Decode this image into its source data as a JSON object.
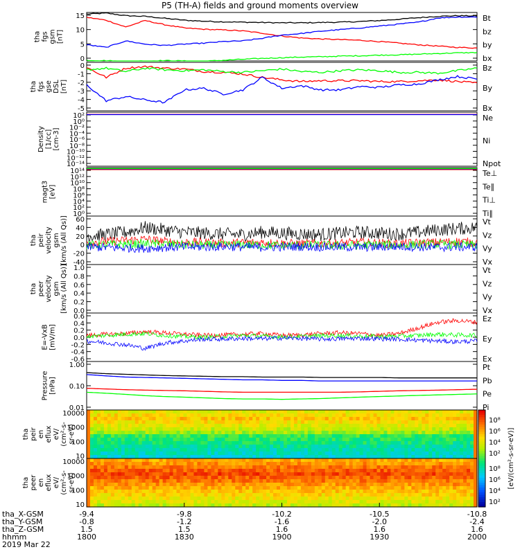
{
  "title": "P5 (TH-A) fields and ground moments overview",
  "chart_data": [
    {
      "type": "line",
      "ylabel_lines": [
        "tha",
        "fgs",
        "gsm",
        "[nT]"
      ],
      "yticks": [
        "15",
        "10",
        "5",
        "0"
      ],
      "ylim": [
        0,
        15
      ],
      "series": [
        {
          "name": "Bt",
          "color": "#000000",
          "values": [
            14.5,
            14.8,
            14.0,
            13.8,
            13.2,
            12.6,
            12.3,
            12.1,
            12.0,
            11.9,
            11.8,
            11.8,
            11.9,
            12.0,
            12.2,
            12.5,
            12.9,
            13.4,
            13.8,
            14.0,
            13.9
          ]
        },
        {
          "name": "bz",
          "color": "#ff0000",
          "values": [
            13.5,
            12.6,
            10.5,
            12.5,
            11.2,
            10.2,
            9.8,
            9.6,
            9.3,
            8.6,
            7.7,
            7.1,
            6.8,
            6.6,
            6.4,
            6.0,
            5.5,
            5.0,
            4.6,
            4.2,
            4.0
          ]
        },
        {
          "name": "by",
          "color": "#00ff00",
          "values": [
            0.2,
            0.1,
            -0.2,
            0.0,
            0.1,
            0.0,
            -0.1,
            0.2,
            0.5,
            0.8,
            1.0,
            1.2,
            1.3,
            1.5,
            1.6,
            1.8,
            1.9,
            2.1,
            2.3,
            2.5,
            2.6
          ]
        },
        {
          "name": "bx",
          "color": "#0000ff",
          "values": [
            5.0,
            4.2,
            6.2,
            5.2,
            4.8,
            5.2,
            5.5,
            6.0,
            6.2,
            7.0,
            8.0,
            8.5,
            9.2,
            9.7,
            10.2,
            10.8,
            11.4,
            12.0,
            13.3,
            13.6,
            13.6
          ]
        }
      ]
    },
    {
      "type": "line",
      "ylabel_lines": [
        "tha",
        "fgs",
        "gse",
        "DSL",
        "[nT]"
      ],
      "yticks": [
        "0",
        "-1",
        "-2",
        "-3",
        "-4",
        "-5"
      ],
      "ylim": [
        -5.5,
        0.3
      ],
      "series": [
        {
          "name": "Bz",
          "color": "#ff0000",
          "values": [
            -0.3,
            -1.5,
            -0.4,
            -0.2,
            -0.4,
            -0.5,
            -0.8,
            -0.9,
            -1.1,
            -1.5,
            -1.8,
            -2.0,
            -1.9,
            -1.9,
            -1.9,
            -2.0,
            -2.0,
            -1.9,
            -1.8,
            -2.0,
            -2.2
          ]
        },
        {
          "name": "By",
          "color": "#00ff00",
          "values": [
            -0.6,
            -0.4,
            -0.8,
            -0.4,
            -0.6,
            -0.7,
            -0.6,
            -0.8,
            -0.9,
            -0.7,
            -0.5,
            -0.8,
            -0.9,
            -0.7,
            -0.6,
            -0.7,
            -0.9,
            -0.9,
            -1.0,
            -0.7,
            -0.4
          ]
        },
        {
          "name": "Bx",
          "color": "#0000ff",
          "values": [
            -2.4,
            -4.3,
            -3.8,
            -4.2,
            -4.5,
            -3.0,
            -2.8,
            -3.5,
            -3.0,
            -1.5,
            -2.8,
            -2.5,
            -3.0,
            -3.0,
            -2.6,
            -2.7,
            -2.4,
            -2.3,
            -1.8,
            -1.4,
            -1.7
          ]
        }
      ]
    },
    {
      "type": "line",
      "ylabel_lines": [
        "Density",
        "[1/cc]",
        "[cm-3]"
      ],
      "yticks": [
        "10²",
        "10⁰",
        "10⁻²",
        "10⁻⁴",
        "10⁻⁶",
        "10⁻⁸",
        "10⁻¹⁰",
        "10⁻¹²",
        "10⁻¹⁴"
      ],
      "ylim": [
        0,
        1
      ],
      "series": [
        {
          "name": "Ne",
          "color": "#ff0000",
          "values": [
            0.96,
            0.96,
            0.96,
            0.96,
            0.96,
            0.96,
            0.96,
            0.96,
            0.96,
            0.96,
            0.96,
            0.96,
            0.96,
            0.96,
            0.96,
            0.96,
            0.96,
            0.96,
            0.96,
            0.96,
            0.96
          ]
        },
        {
          "name": "Ni",
          "color": "#000000",
          "values": []
        },
        {
          "name": "Npot",
          "color": "#0000ff",
          "values": [
            0.955,
            0.955,
            0.955,
            0.955,
            0.955,
            0.955,
            0.955,
            0.955,
            0.955,
            0.955,
            0.955,
            0.955,
            0.955,
            0.955,
            0.955,
            0.955,
            0.955,
            0.955,
            0.955,
            0.955,
            0.955
          ]
        }
      ]
    },
    {
      "type": "line",
      "ylabel_lines": [
        "magt3",
        "[eV]"
      ],
      "yticks": [
        "10¹⁴",
        "10¹²",
        "10¹⁰",
        "10⁸",
        "10⁶",
        "10⁴",
        "10²",
        "10⁰"
      ],
      "ylim": [
        0,
        1
      ],
      "series": [
        {
          "name": "Te⊥",
          "color": "#ff0000",
          "values": [
            0.96,
            0.96,
            0.96,
            0.96,
            0.96,
            0.96,
            0.96,
            0.96,
            0.96,
            0.96,
            0.96,
            0.96,
            0.96,
            0.96,
            0.96,
            0.96,
            0.96,
            0.96,
            0.96,
            0.96,
            0.96
          ]
        },
        {
          "name": "Te∥",
          "color": "#000000",
          "values": []
        },
        {
          "name": "Ti⊥",
          "color": "#0000ff",
          "values": [
            0.975,
            0.975,
            0.975,
            0.975,
            0.975,
            0.975,
            0.975,
            0.975,
            0.975,
            0.975,
            0.975,
            0.975,
            0.975,
            0.975,
            0.975,
            0.975,
            0.975,
            0.975,
            0.975,
            0.975,
            0.975
          ]
        },
        {
          "name": "Ti∥",
          "color": "#00ff00",
          "values": [
            0.98,
            0.98,
            0.98,
            0.98,
            0.98,
            0.98,
            0.98,
            0.98,
            0.98,
            0.98,
            0.98,
            0.98,
            0.98,
            0.98,
            0.98,
            0.98,
            0.98,
            0.98,
            0.98,
            0.98,
            0.98
          ]
        }
      ]
    },
    {
      "type": "line",
      "ylabel_lines": [
        "tha",
        "peir",
        "velocity",
        "gsm",
        "[km/s (All Qs)]"
      ],
      "yticks": [
        "60",
        "40",
        "20",
        "0",
        "-20",
        "-40"
      ],
      "ylim": [
        -40,
        65
      ],
      "series": [
        {
          "name": "Vt",
          "color": "#000000",
          "values": [
            22,
            25,
            30,
            40,
            35,
            30,
            28,
            26,
            25,
            30,
            28,
            26,
            25,
            28,
            30,
            28,
            26,
            30,
            35,
            38,
            40
          ]
        },
        {
          "name": "Vz",
          "color": "#ff0000",
          "values": [
            8,
            10,
            12,
            15,
            10,
            8,
            8,
            6,
            7,
            8,
            6,
            5,
            6,
            6,
            8,
            6,
            5,
            7,
            8,
            10,
            8
          ]
        },
        {
          "name": "Vy",
          "color": "#00ff00",
          "values": [
            2,
            3,
            4,
            5,
            4,
            3,
            2,
            2,
            3,
            2,
            1,
            2,
            2,
            1,
            2,
            3,
            2,
            3,
            4,
            3,
            2
          ]
        },
        {
          "name": "Vx",
          "color": "#0000ff",
          "values": [
            -2,
            -3,
            -4,
            -5,
            -3,
            -2,
            -2,
            -1,
            -2,
            -3,
            -2,
            -1,
            -2,
            -2,
            -3,
            -2,
            -1,
            -2,
            -3,
            -2,
            -2
          ]
        }
      ]
    },
    {
      "type": "line",
      "ylabel_lines": [
        "tha",
        "peer",
        "velocity",
        "gsm",
        "[km/s (All Qs)]"
      ],
      "yticks": [
        "1.0",
        "0.8",
        "0.6",
        "0.4",
        "0.2",
        "0.0"
      ],
      "ylim": [
        0,
        1
      ],
      "series": [
        {
          "name": "Vt",
          "color": "#000000",
          "values": []
        },
        {
          "name": "Vz",
          "color": "#ff0000",
          "values": []
        },
        {
          "name": "Vy",
          "color": "#00ff00",
          "values": []
        },
        {
          "name": "Vx",
          "color": "#0000ff",
          "values": []
        }
      ]
    },
    {
      "type": "line",
      "ylabel_lines": [
        "E=-VxB",
        "[mV/m]"
      ],
      "yticks": [
        "0.6",
        "0.4",
        "0.2",
        "0.0",
        "-0.2",
        "-0.4",
        "-0.6"
      ],
      "ylim": [
        -0.65,
        0.65
      ],
      "series": [
        {
          "name": "Ez",
          "color": "#ff0000",
          "values": [
            0.05,
            0.08,
            0.1,
            0.15,
            0.12,
            0.08,
            0.05,
            0.06,
            0.08,
            0.1,
            0.05,
            0.06,
            0.1,
            0.12,
            0.1,
            0.05,
            0.1,
            0.25,
            0.4,
            0.45,
            0.4
          ]
        },
        {
          "name": "Ey",
          "color": "#00ff00",
          "values": [
            0.02,
            0.05,
            0.08,
            0.1,
            0.05,
            0.02,
            0.0,
            0.02,
            0.05,
            0.03,
            0.01,
            0.02,
            0.04,
            0.05,
            0.03,
            0.02,
            0.03,
            0.05,
            0.08,
            0.06,
            0.05
          ]
        },
        {
          "name": "Ex",
          "color": "#0000ff",
          "values": [
            -0.1,
            -0.15,
            -0.2,
            -0.3,
            -0.15,
            -0.1,
            -0.05,
            -0.05,
            -0.03,
            -0.04,
            -0.02,
            -0.03,
            -0.05,
            -0.04,
            -0.03,
            -0.04,
            -0.05,
            -0.08,
            -0.1,
            -0.12,
            -0.1
          ]
        }
      ]
    },
    {
      "type": "line",
      "log": true,
      "ylabel_lines": [
        "Pressure",
        "[nPa]"
      ],
      "yticks": [
        "1.00",
        "0.10",
        "0.01"
      ],
      "ylim": [
        0.008,
        1.2
      ],
      "series": [
        {
          "name": "Pt",
          "color": "#000000",
          "values": [
            0.38,
            0.34,
            0.32,
            0.3,
            0.28,
            0.27,
            0.26,
            0.25,
            0.25,
            0.24,
            0.24,
            0.24,
            0.23,
            0.23,
            0.23,
            0.23,
            0.22,
            0.22,
            0.22,
            0.22,
            0.22
          ]
        },
        {
          "name": "Pb",
          "color": "#0000ff",
          "values": [
            0.31,
            0.27,
            0.24,
            0.23,
            0.22,
            0.21,
            0.2,
            0.19,
            0.18,
            0.18,
            0.17,
            0.17,
            0.16,
            0.16,
            0.16,
            0.16,
            0.16,
            0.16,
            0.16,
            0.16,
            0.16
          ]
        },
        {
          "name": "Pe",
          "color": "#ff0000",
          "values": [
            0.075,
            0.07,
            0.065,
            0.062,
            0.06,
            0.058,
            0.055,
            0.052,
            0.05,
            0.05,
            0.05,
            0.05,
            0.05,
            0.05,
            0.052,
            0.055,
            0.058,
            0.06,
            0.062,
            0.065,
            0.068
          ]
        },
        {
          "name": "Pi",
          "color": "#00ff00",
          "values": [
            0.05,
            0.045,
            0.04,
            0.035,
            0.032,
            0.03,
            0.028,
            0.026,
            0.025,
            0.025,
            0.024,
            0.025,
            0.026,
            0.028,
            0.03,
            0.032,
            0.034,
            0.036,
            0.038,
            0.04,
            0.042
          ]
        }
      ]
    },
    {
      "type": "heatmap",
      "ylabel_lines": [
        "tha",
        "peir",
        "en",
        "eflux",
        "eV/",
        "(cm²-s-",
        "sr-eV)"
      ],
      "yticks": [
        "10000",
        "1000",
        "100",
        "10"
      ],
      "colorbar_ticks": [
        "10⁸",
        "10⁶",
        "10⁴",
        "10²"
      ],
      "colorbar_label": "[eV/(cm²-s-sr-eV)]"
    },
    {
      "type": "heatmap",
      "ylabel_lines": [
        "tha",
        "peer",
        "en",
        "eflux",
        "eV/",
        "(cm²-s-",
        "sr-eV)"
      ],
      "yticks": [
        "10000",
        "1000",
        "100",
        "10"
      ],
      "colorbar_ticks": [
        "10⁸",
        "10⁶",
        "10⁴",
        "10²"
      ],
      "colorbar_label": "[eV/(cm²-s-sr-eV)]"
    }
  ],
  "xaxis": {
    "row_labels": [
      "tha_X-GSM",
      "tha_Y-GSM",
      "tha_Z-GSM",
      "hhmm",
      "2019 Mar 22"
    ],
    "columns": [
      [
        "-9.4",
        "-0.8",
        "1.5",
        "1800"
      ],
      [
        "-9.8",
        "-1.2",
        "1.5",
        "1830"
      ],
      [
        "-10.2",
        "-1.6",
        "1.6",
        "1900"
      ],
      [
        "-10.5",
        "-2.0",
        "1.6",
        "1930"
      ],
      [
        "-10.8",
        "-2.4",
        "1.6",
        "2000"
      ]
    ]
  }
}
